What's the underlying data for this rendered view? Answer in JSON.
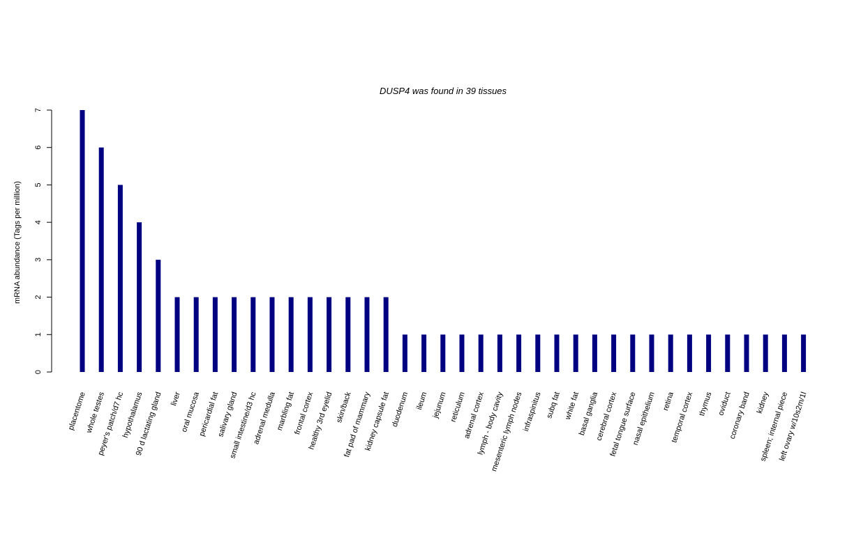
{
  "chart_data": {
    "type": "bar",
    "title": "DUSP4  was found in  39  tissues",
    "xlabel": "",
    "ylabel": "mRNA abundance (Tags per million)",
    "ylim": [
      0,
      7
    ],
    "yticks": [
      0,
      1,
      2,
      3,
      4,
      5,
      6,
      7
    ],
    "bar_color": "#000080",
    "categories": [
      "placentome",
      "whole testes",
      "peyer's patch/d7 hc",
      "hypothalamus",
      "90 d lactating gland",
      "liver",
      "oral mucosa",
      "pericardial fat",
      "salivary gland",
      "small intestine/d3 hc",
      "adrenal medulla",
      "marbling fat",
      "frontal cortex",
      "healthy 3rd eyelid",
      "skin/back",
      "fat pad of mammary",
      "kidney capsule fat",
      "duodenum",
      "ileum",
      "jejunum",
      "reticulum",
      "adrenal cortex",
      "lymph - body cavity",
      "mesenteric lymph nodes",
      "infraspinitus",
      "subq fat",
      "white fat",
      "basal ganglia",
      "cerebral cortex",
      "fetal tongue surface",
      "nasal epithelium",
      "retina",
      "temporal cortex",
      "thymus",
      "oviduct",
      "coronary band",
      "kidney",
      "spleen; internal piece",
      "left ovary w/10s2m/1l"
    ],
    "values": [
      7,
      6,
      5,
      4,
      3,
      2,
      2,
      2,
      2,
      2,
      2,
      2,
      2,
      2,
      2,
      2,
      2,
      1,
      1,
      1,
      1,
      1,
      1,
      1,
      1,
      1,
      1,
      1,
      1,
      1,
      1,
      1,
      1,
      1,
      1,
      1,
      1,
      1,
      1
    ]
  }
}
